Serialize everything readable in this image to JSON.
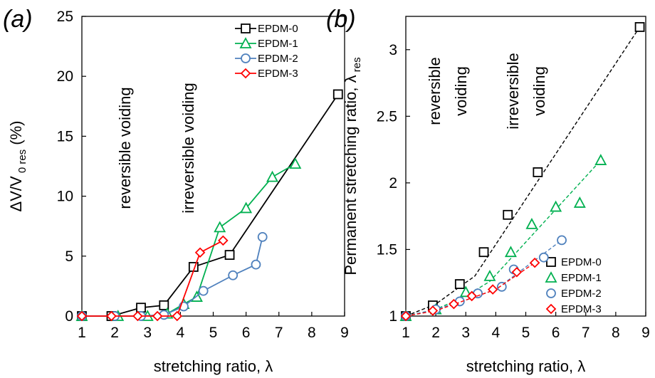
{
  "chart_data": [
    {
      "type": "line",
      "panel_label": "(a)",
      "xlabel": "stretching ratio, λ",
      "ylabel_main": "ΔV/V",
      "ylabel_sub": "0 res",
      "ylabel_unit": " (%)",
      "xlim": [
        1,
        9
      ],
      "ylim": [
        0,
        25
      ],
      "xticks": [
        1,
        2,
        3,
        4,
        5,
        6,
        7,
        8,
        9
      ],
      "yticks": [
        0,
        5,
        10,
        15,
        20,
        25
      ],
      "grid": false,
      "legend_position": "top-right",
      "annotations": [
        "reversible voiding",
        "irreversible voiding"
      ],
      "series": [
        {
          "name": "EPDM-0",
          "marker": "square",
          "color": "#000000",
          "line": "solid",
          "points": [
            [
              1,
              0
            ],
            [
              1.9,
              0
            ],
            [
              2.8,
              0.7
            ],
            [
              3.5,
              0.9
            ],
            [
              4.4,
              4.1
            ],
            [
              5.5,
              5.1
            ],
            [
              8.8,
              18.5
            ]
          ]
        },
        {
          "name": "EPDM-1",
          "marker": "triangle",
          "color": "#00b050",
          "line": "solid",
          "points": [
            [
              1,
              0
            ],
            [
              2.1,
              0
            ],
            [
              3.0,
              0
            ],
            [
              3.6,
              0.2
            ],
            [
              4.1,
              1.0
            ],
            [
              4.5,
              1.6
            ],
            [
              5.2,
              7.4
            ],
            [
              6.0,
              9.0
            ],
            [
              6.8,
              11.6
            ],
            [
              7.5,
              12.7
            ]
          ]
        },
        {
          "name": "EPDM-2",
          "marker": "circle",
          "color": "#4f81bd",
          "line": "solid",
          "points": [
            [
              1,
              0
            ],
            [
              2.0,
              0
            ],
            [
              2.8,
              0
            ],
            [
              3.5,
              0.1
            ],
            [
              4.1,
              0.8
            ],
            [
              4.7,
              2.1
            ],
            [
              5.6,
              3.4
            ],
            [
              6.3,
              4.3
            ],
            [
              6.5,
              6.6
            ]
          ]
        },
        {
          "name": "EPDM-3",
          "marker": "diamond",
          "color": "#ff0000",
          "line": "solid",
          "points": [
            [
              1,
              0
            ],
            [
              1.9,
              0
            ],
            [
              2.7,
              0
            ],
            [
              3.3,
              0
            ],
            [
              3.9,
              0
            ],
            [
              4.6,
              5.3
            ],
            [
              5.3,
              6.3
            ]
          ]
        }
      ]
    },
    {
      "type": "scatter",
      "panel_label": "(b)",
      "xlabel": "stretching ratio, λ",
      "ylabel_main": "Permanent  stretching ratio, λ",
      "ylabel_sub": "res",
      "ylabel_unit": "",
      "xlim": [
        1,
        9
      ],
      "ylim": [
        1,
        3.25
      ],
      "xticks": [
        1,
        2,
        3,
        4,
        5,
        6,
        7,
        8,
        9
      ],
      "yticks": [
        1,
        1.5,
        2,
        2.5,
        3
      ],
      "grid": false,
      "legend_position": "bottom-right",
      "annotations": [
        "reversible",
        "voiding",
        "irreversible",
        "voiding"
      ],
      "series": [
        {
          "name": "EPDM-0",
          "marker": "square",
          "color": "#000000",
          "line": "dashed",
          "points": [
            [
              1,
              1.0
            ],
            [
              1.9,
              1.08
            ],
            [
              2.8,
              1.24
            ],
            [
              3.6,
              1.48
            ],
            [
              4.4,
              1.76
            ],
            [
              5.4,
              2.08
            ],
            [
              8.8,
              3.17
            ]
          ],
          "fit": [
            [
              1,
              1.0
            ],
            [
              2.0,
              1.09
            ],
            [
              2.8,
              1.22
            ],
            [
              3.3,
              1.3
            ],
            [
              8.8,
              3.17
            ]
          ]
        },
        {
          "name": "EPDM-1",
          "marker": "triangle",
          "color": "#00b050",
          "line": "dashed",
          "points": [
            [
              1,
              1.0
            ],
            [
              2.0,
              1.05
            ],
            [
              3.0,
              1.18
            ],
            [
              3.8,
              1.3
            ],
            [
              4.5,
              1.48
            ],
            [
              5.2,
              1.69
            ],
            [
              6.0,
              1.82
            ],
            [
              6.8,
              1.85
            ],
            [
              7.5,
              2.17
            ]
          ],
          "fit": [
            [
              1,
              1.0
            ],
            [
              2.0,
              1.05
            ],
            [
              3.0,
              1.15
            ],
            [
              3.8,
              1.26
            ],
            [
              7.5,
              2.17
            ]
          ]
        },
        {
          "name": "EPDM-2",
          "marker": "circle",
          "color": "#4f81bd",
          "line": "dashed",
          "points": [
            [
              1,
              1.0
            ],
            [
              2.0,
              1.05
            ],
            [
              2.8,
              1.11
            ],
            [
              3.4,
              1.17
            ],
            [
              4.2,
              1.22
            ],
            [
              4.6,
              1.35
            ],
            [
              5.6,
              1.44
            ],
            [
              6.2,
              1.57
            ]
          ],
          "fit": [
            [
              1,
              1.0
            ],
            [
              2.0,
              1.05
            ],
            [
              3.0,
              1.12
            ],
            [
              4.0,
              1.2
            ],
            [
              6.2,
              1.57
            ]
          ]
        },
        {
          "name": "EPDM-3",
          "marker": "diamond",
          "color": "#ff0000",
          "line": "dashed",
          "points": [
            [
              1,
              1.0
            ],
            [
              1.9,
              1.04
            ],
            [
              2.6,
              1.09
            ],
            [
              3.2,
              1.15
            ],
            [
              3.9,
              1.2
            ],
            [
              4.7,
              1.33
            ],
            [
              5.3,
              1.4
            ]
          ],
          "fit": [
            [
              1,
              1.0
            ],
            [
              2.0,
              1.04
            ],
            [
              3.0,
              1.12
            ],
            [
              4.0,
              1.2
            ],
            [
              5.3,
              1.4
            ]
          ]
        }
      ]
    }
  ]
}
